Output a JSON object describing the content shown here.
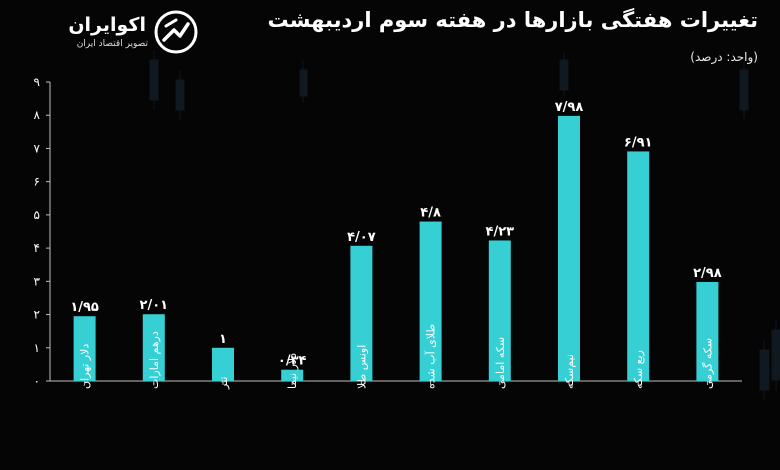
{
  "header": {
    "title": "تغییرات هفتگی بازارها در هفته سوم اردیبهشت",
    "unit": "(واحد: درصد)"
  },
  "brand": {
    "name": "اکوایران",
    "tagline": "تصویر اقتصاد ایران"
  },
  "colors": {
    "background": "#050505",
    "bar": "#35cfd4",
    "axis": "#bfbfbf",
    "text": "#ffffff"
  },
  "chart_data": {
    "type": "bar",
    "categories": [
      "دلار تهران",
      "درهم امارات",
      "تتر",
      "دلار نیما",
      "اونس طلا",
      "طلای آب شده",
      "سکه امامی",
      "نیم‌سکه",
      "ربع سکه",
      "سکه گرمی"
    ],
    "values": [
      1.95,
      2.01,
      1,
      0.34,
      4.07,
      4.8,
      4.23,
      7.98,
      6.91,
      2.98
    ],
    "value_labels": [
      "۱/۹۵",
      "۲/۰۱",
      "۱",
      "۰/۳۴",
      "۴/۰۷",
      "۴/۸",
      "۴/۲۳",
      "۷/۹۸",
      "۶/۹۱",
      "۲/۹۸"
    ],
    "y_ticks": [
      0,
      1,
      2,
      3,
      4,
      5,
      6,
      7,
      8,
      9
    ],
    "y_tick_labels": [
      "۰",
      "۱",
      "۲",
      "۳",
      "۴",
      "۵",
      "۶",
      "۷",
      "۸",
      "۹"
    ],
    "ylim": [
      0,
      9
    ],
    "grid": false,
    "legend": "none"
  }
}
